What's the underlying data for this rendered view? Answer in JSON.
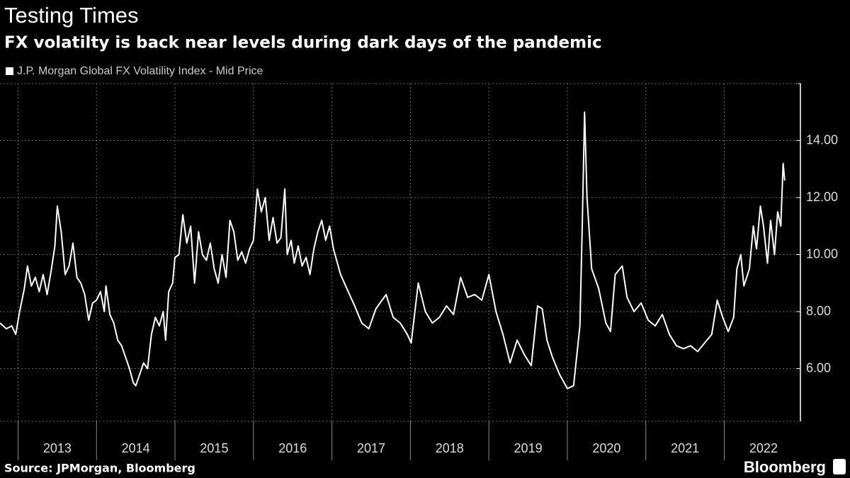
{
  "chart_data": {
    "type": "line",
    "title": "Testing Times",
    "subtitle": "FX volatilty is back near levels during dark days of the pandemic",
    "source": "Source: JPMorgan, Bloomberg",
    "brand": "Bloomberg",
    "xlim": [
      2012.77,
      2022.97
    ],
    "xticks": [
      2013,
      2014,
      2015,
      2016,
      2017,
      2018,
      2019,
      2020,
      2021,
      2022
    ],
    "ylim": [
      4.15,
      16
    ],
    "yticks": [
      {
        "value": 6,
        "label": "6.00"
      },
      {
        "value": 8,
        "label": "8.00"
      },
      {
        "value": 10,
        "label": "10.00"
      },
      {
        "value": 12,
        "label": "12.00"
      },
      {
        "value": 14,
        "label": "14.00"
      }
    ],
    "grid": true,
    "legend": "top-left",
    "x": [
      2012.77,
      2012.85,
      2012.92,
      2012.97,
      2013.02,
      2013.08,
      2013.12,
      2013.17,
      2013.22,
      2013.27,
      2013.32,
      2013.37,
      2013.42,
      2013.47,
      2013.5,
      2013.55,
      2013.6,
      2013.65,
      2013.7,
      2013.75,
      2013.8,
      2013.85,
      2013.9,
      2013.95,
      2014.0,
      2014.05,
      2014.1,
      2014.12,
      2014.17,
      2014.22,
      2014.27,
      2014.32,
      2014.37,
      2014.42,
      2014.47,
      2014.5,
      2014.55,
      2014.6,
      2014.65,
      2014.7,
      2014.75,
      2014.8,
      2014.85,
      2014.88,
      2014.92,
      2014.97,
      2015.0,
      2015.05,
      2015.1,
      2015.15,
      2015.2,
      2015.25,
      2015.3,
      2015.35,
      2015.4,
      2015.45,
      2015.5,
      2015.55,
      2015.6,
      2015.65,
      2015.7,
      2015.75,
      2015.8,
      2015.85,
      2015.9,
      2015.95,
      2016.0,
      2016.05,
      2016.1,
      2016.15,
      2016.2,
      2016.25,
      2016.3,
      2016.35,
      2016.4,
      2016.43,
      2016.48,
      2016.52,
      2016.57,
      2016.62,
      2016.67,
      2016.72,
      2016.77,
      2016.82,
      2016.87,
      2016.92,
      2016.97,
      2017.02,
      2017.11,
      2017.29,
      2017.38,
      2017.47,
      2017.56,
      2017.69,
      2017.78,
      2017.87,
      2017.96,
      2018.01,
      2018.1,
      2018.19,
      2018.28,
      2018.37,
      2018.46,
      2018.55,
      2018.64,
      2018.73,
      2018.82,
      2018.91,
      2019.0,
      2019.09,
      2019.18,
      2019.27,
      2019.36,
      2019.45,
      2019.54,
      2019.62,
      2019.68,
      2019.74,
      2019.81,
      2019.9,
      2020.0,
      2020.08,
      2020.16,
      2020.19,
      2020.22,
      2020.25,
      2020.31,
      2020.4,
      2020.49,
      2020.55,
      2020.61,
      2020.7,
      2020.76,
      2020.85,
      2020.94,
      2021.03,
      2021.12,
      2021.21,
      2021.3,
      2021.39,
      2021.48,
      2021.57,
      2021.66,
      2021.75,
      2021.84,
      2021.91,
      2021.98,
      2022.05,
      2022.12,
      2022.16,
      2022.21,
      2022.25,
      2022.32,
      2022.37,
      2022.41,
      2022.46,
      2022.5,
      2022.55,
      2022.59,
      2022.64,
      2022.68,
      2022.72,
      2022.75,
      2022.77
    ],
    "series": [
      {
        "name": "J.P. Morgan Global FX Volatility Index - Mid Price",
        "color": "#ffffff",
        "values": [
          7.6,
          7.4,
          7.5,
          7.2,
          8.0,
          8.8,
          9.6,
          8.9,
          9.2,
          8.7,
          9.3,
          8.6,
          9.4,
          10.3,
          11.7,
          10.8,
          9.3,
          9.6,
          10.4,
          9.2,
          9.0,
          8.6,
          7.7,
          8.3,
          8.4,
          8.7,
          8.0,
          8.9,
          7.9,
          7.6,
          7.0,
          6.8,
          6.4,
          6.0,
          5.5,
          5.4,
          5.8,
          6.2,
          6.0,
          7.2,
          7.8,
          7.5,
          8.0,
          7.0,
          8.7,
          9.0,
          9.9,
          10.0,
          11.4,
          10.4,
          11.0,
          9.0,
          10.8,
          10.0,
          9.8,
          10.4,
          9.5,
          9.0,
          10.0,
          9.2,
          11.2,
          10.8,
          9.8,
          10.1,
          9.7,
          10.2,
          10.5,
          12.3,
          11.5,
          12.0,
          10.5,
          11.3,
          10.4,
          10.6,
          12.3,
          10.0,
          10.5,
          9.7,
          10.3,
          9.6,
          9.9,
          9.3,
          10.2,
          10.8,
          11.2,
          10.5,
          11.0,
          10.2,
          9.3,
          8.2,
          7.6,
          7.4,
          8.1,
          8.6,
          7.8,
          7.6,
          7.2,
          6.9,
          9.0,
          8.0,
          7.6,
          7.8,
          8.2,
          7.9,
          9.2,
          8.5,
          8.6,
          8.4,
          9.3,
          8.0,
          7.2,
          6.2,
          7.0,
          6.5,
          6.1,
          8.2,
          8.1,
          7.0,
          6.4,
          5.8,
          5.3,
          5.4,
          7.5,
          11.0,
          15.0,
          12.0,
          9.5,
          8.8,
          7.6,
          7.3,
          9.3,
          9.6,
          8.5,
          8.0,
          8.3,
          7.7,
          7.5,
          7.9,
          7.2,
          6.8,
          6.7,
          6.8,
          6.6,
          6.9,
          7.2,
          8.4,
          7.8,
          7.3,
          7.8,
          9.5,
          10.0,
          8.9,
          9.5,
          11.0,
          10.2,
          11.7,
          11.0,
          9.7,
          11.2,
          10.0,
          11.5,
          11.0,
          13.2,
          12.6
        ]
      }
    ]
  }
}
